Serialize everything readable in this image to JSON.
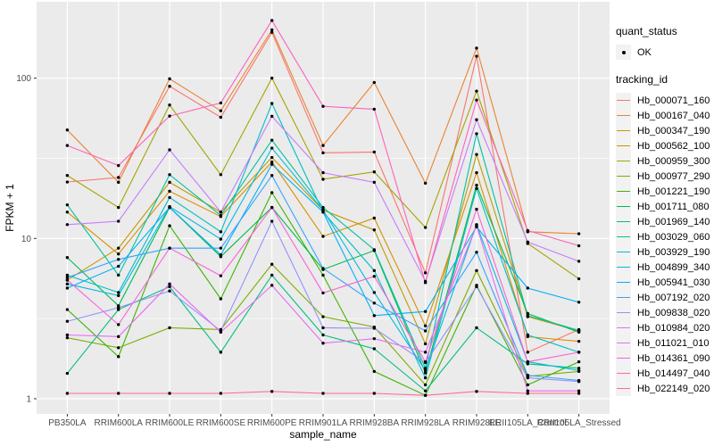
{
  "figure": {
    "background": "#FFFFFF",
    "panel_bg": "#EBEBEB",
    "grid_color": "#FFFFFF",
    "tick_color": "#333333",
    "axis_text_color": "#4D4D4D",
    "title_color": "#000000",
    "point_color": "#000000",
    "legend_key_bg": "#F2F2F2"
  },
  "axes": {
    "x_title": "sample_name",
    "y_title": "FPKM + 1",
    "y_tick_labels": [
      "1",
      "10",
      "100"
    ],
    "y_tick_values": [
      1,
      10,
      100
    ],
    "y_minor_values": [
      3.1623,
      31.623
    ]
  },
  "legend": {
    "quant_title": "quant_status",
    "quant_items": [
      {
        "label": "OK",
        "marker": "black-point"
      }
    ],
    "tracking_title": "tracking_id"
  },
  "chart_data": {
    "type": "line",
    "title": "",
    "xlabel": "sample_name",
    "ylabel": "FPKM + 1",
    "y_scale": "log10",
    "ylim": [
      1,
      240
    ],
    "grid": true,
    "legend_position": "right",
    "marker": "black point at every vertex (quant_status = OK)",
    "categories": [
      "PB350LA",
      "RRIM600LA",
      "RRIM600LE",
      "RRIM600SE",
      "RRIM600PE",
      "RRIM901LA",
      "RRIM928BA",
      "RRIM928LA",
      "RRIM928LE",
      "RRII105LA_Control",
      "RRII105LA_Stressed"
    ],
    "series": [
      {
        "name": "Hb_000071_160",
        "color": "#F8766D",
        "values": [
          22.5,
          24,
          89,
          57,
          193,
          34.2,
          34.6,
          6.1,
          137,
          1.95,
          2.7
        ]
      },
      {
        "name": "Hb_000167_040",
        "color": "#EA8331",
        "values": [
          47.5,
          22.4,
          99,
          62.6,
          200,
          38,
          94,
          22.1,
          154,
          11.0,
          10.7
        ]
      },
      {
        "name": "Hb_000347_190",
        "color": "#D89000",
        "values": [
          14.6,
          8.0,
          19.7,
          13.7,
          30,
          10.3,
          13.4,
          2.85,
          25.7,
          2.44,
          2.28
        ]
      },
      {
        "name": "Hb_000562_100",
        "color": "#C09B00",
        "values": [
          5.5,
          8.7,
          22.4,
          14.6,
          32,
          15,
          11.3,
          2.2,
          33.4,
          3.25,
          2.65
        ]
      },
      {
        "name": "Hb_000959_300",
        "color": "#A3A500",
        "values": [
          24.7,
          15.6,
          68,
          25,
          100,
          23.4,
          26,
          11.7,
          83,
          9.3,
          5.6
        ]
      },
      {
        "name": "Hb_000977_290",
        "color": "#7CAE00",
        "values": [
          2.4,
          2.08,
          2.77,
          2.7,
          6.9,
          3.25,
          2.8,
          1.22,
          6.3,
          1.38,
          1.48
        ]
      },
      {
        "name": "Hb_001221_190",
        "color": "#39B600",
        "values": [
          3.6,
          1.83,
          12.0,
          4.2,
          19.3,
          5.9,
          1.48,
          1.05,
          5.1,
          1.22,
          1.7
        ]
      },
      {
        "name": "Hb_001711_080",
        "color": "#00BB4E",
        "values": [
          7.6,
          3.8,
          15.6,
          7.7,
          15.6,
          6.4,
          8.4,
          1.45,
          21.5,
          3.4,
          2.6
        ]
      },
      {
        "name": "Hb_001969_140",
        "color": "#00BF7D",
        "values": [
          1.44,
          3.6,
          5.0,
          1.95,
          5.9,
          2.5,
          2.05,
          1.12,
          2.77,
          1.65,
          1.55
        ]
      },
      {
        "name": "Hb_003029_060",
        "color": "#00C1A3",
        "values": [
          16.2,
          5.9,
          25,
          13.9,
          41,
          15.6,
          8.5,
          1.55,
          45,
          3.3,
          2.67
        ]
      },
      {
        "name": "Hb_003929_190",
        "color": "#00BFC4",
        "values": [
          5.9,
          4.6,
          18,
          11.0,
          69.5,
          14.6,
          6.3,
          1.35,
          20.5,
          2.5,
          1.95
        ]
      },
      {
        "name": "Hb_004899_340",
        "color": "#00BAE0",
        "values": [
          5.2,
          4.4,
          15.8,
          9.9,
          36.6,
          15,
          4.6,
          1.5,
          12.2,
          1.7,
          1.5
        ]
      },
      {
        "name": "Hb_005941_030",
        "color": "#00B0F6",
        "values": [
          4.9,
          6.7,
          15.6,
          7.9,
          29,
          14.6,
          3.3,
          3.5,
          11.8,
          4.9,
          4.0
        ]
      },
      {
        "name": "Hb_007192_020",
        "color": "#35A2FF",
        "values": [
          5.7,
          7.4,
          8.7,
          8.7,
          24.7,
          6.5,
          3.95,
          2.65,
          8.2,
          1.4,
          1.3
        ]
      },
      {
        "name": "Hb_009838_020",
        "color": "#9590FF",
        "values": [
          3.04,
          3.7,
          4.7,
          2.65,
          12.8,
          2.77,
          2.75,
          1.68,
          5.0,
          1.35,
          1.28
        ]
      },
      {
        "name": "Hb_010984_020",
        "color": "#C77CFF",
        "values": [
          12.2,
          12.8,
          35.7,
          14.6,
          57.8,
          25.7,
          22.4,
          5.4,
          55,
          9.5,
          7.2
        ]
      },
      {
        "name": "Hb_011021_010",
        "color": "#E76BF3",
        "values": [
          2.5,
          2.44,
          5.2,
          2.6,
          5.1,
          2.22,
          2.37,
          1.95,
          12.0,
          1.12,
          1.12
        ]
      },
      {
        "name": "Hb_014361_090",
        "color": "#FA62DB",
        "values": [
          5.5,
          2.9,
          8.7,
          5.85,
          15.6,
          4.57,
          5.8,
          1.7,
          15.2,
          1.7,
          1.95
        ]
      },
      {
        "name": "Hb_014497_040",
        "color": "#FF62BC",
        "values": [
          38,
          28.5,
          58,
          70,
          229,
          66.7,
          64,
          5.3,
          73,
          11.2,
          9.0
        ]
      },
      {
        "name": "Hb_022149_020",
        "color": "#FF6A98",
        "values": [
          1.08,
          1.08,
          1.08,
          1.08,
          1.11,
          1.08,
          1.08,
          1.05,
          1.11,
          1.08,
          1.08
        ]
      }
    ]
  }
}
